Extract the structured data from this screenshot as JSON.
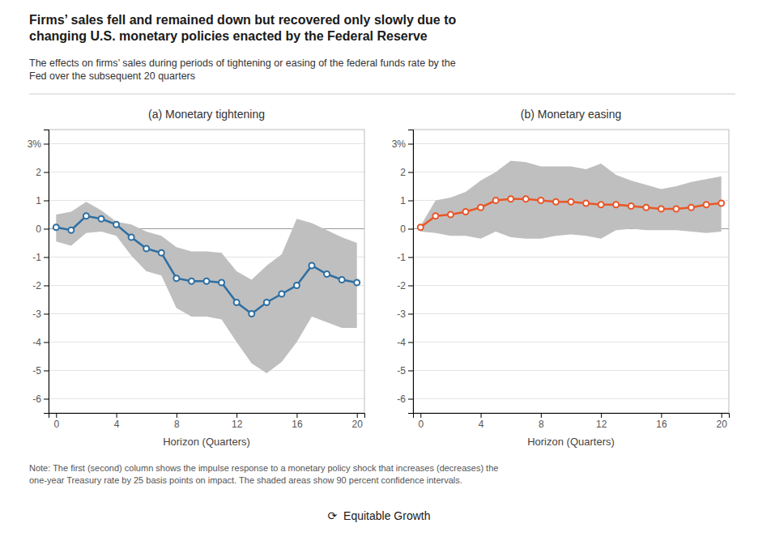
{
  "title": "Firms’ sales fell and remained down but recovered only slowly due to\nchanging U.S. monetary policies enacted by the Federal Reserve",
  "subtitle": "The effects on firms’ sales during periods of tightening or easing of the federal funds rate by the\nFed over the subsequent 20 quarters",
  "note": "Note: The first (second) column shows the impulse response to a monetary policy shock that increases (decreases) the\none-year Treasury rate by 25 basis points on impact. The shaded areas show 90 percent confidence intervals.",
  "annotations": [
    "⟳  Equitable Growth"
  ],
  "chart_data": [
    {
      "type": "line",
      "title": "(a) Monetary tightening",
      "x_label": "Horizon (Quarters)",
      "x": [
        0,
        1,
        2,
        3,
        4,
        5,
        6,
        7,
        8,
        9,
        10,
        11,
        12,
        13,
        14,
        15,
        16,
        17,
        18,
        19,
        20
      ],
      "series": [
        {
          "type": "area",
          "color": "#c0bfbf",
          "upper": [
            0.5,
            0.6,
            0.95,
            0.65,
            0.25,
            0.15,
            -0.1,
            -0.25,
            -0.65,
            -0.8,
            -0.8,
            -0.85,
            -1.5,
            -1.8,
            -1.3,
            -0.9,
            0.35,
            0.2,
            -0.05,
            -0.3,
            -0.5
          ],
          "lower": [
            -0.45,
            -0.6,
            -0.15,
            -0.1,
            -0.25,
            -0.95,
            -1.5,
            -1.65,
            -2.8,
            -3.1,
            -3.1,
            -3.2,
            -4.0,
            -4.75,
            -5.1,
            -4.7,
            -4.0,
            -3.1,
            -3.3,
            -3.5,
            -3.5
          ]
        },
        {
          "type": "line",
          "color": "#2e6fa3",
          "marker": "circle",
          "values": [
            0.05,
            -0.05,
            0.45,
            0.35,
            0.15,
            -0.3,
            -0.7,
            -0.85,
            -1.75,
            -1.85,
            -1.85,
            -1.9,
            -2.6,
            -3.0,
            -2.6,
            -2.3,
            -2.0,
            -1.3,
            -1.6,
            -1.8,
            -1.9
          ]
        }
      ],
      "xlim": [
        -0.5,
        20.5
      ],
      "xticks": [
        0,
        4,
        8,
        12,
        16,
        20
      ],
      "ylim": [
        -6.5,
        3.5
      ],
      "yticks": [
        -6,
        -5,
        -4,
        -3,
        -2,
        -1,
        0,
        1,
        2,
        {
          "value": 3,
          "label": "3%"
        }
      ],
      "grid": true
    },
    {
      "type": "line",
      "title": "(b) Monetary easing",
      "x_label": "Horizon (Quarters)",
      "x": [
        0,
        1,
        2,
        3,
        4,
        5,
        6,
        7,
        8,
        9,
        10,
        11,
        12,
        13,
        14,
        15,
        16,
        17,
        18,
        19,
        20
      ],
      "series": [
        {
          "type": "area",
          "color": "#c0bfbf",
          "upper": [
            0.1,
            1.0,
            1.1,
            1.3,
            1.7,
            2.0,
            2.4,
            2.35,
            2.2,
            2.2,
            2.2,
            2.1,
            2.3,
            1.9,
            1.7,
            1.55,
            1.4,
            1.5,
            1.65,
            1.75,
            1.85
          ],
          "lower": [
            -0.1,
            -0.15,
            -0.25,
            -0.25,
            -0.35,
            -0.1,
            -0.3,
            -0.35,
            -0.35,
            -0.25,
            -0.2,
            -0.25,
            -0.35,
            -0.05,
            0.0,
            -0.05,
            -0.05,
            -0.05,
            -0.1,
            -0.15,
            -0.1
          ]
        },
        {
          "type": "line",
          "color": "#e8572a",
          "marker": "circle",
          "values": [
            0.05,
            0.45,
            0.5,
            0.6,
            0.75,
            1.0,
            1.05,
            1.05,
            1.0,
            0.95,
            0.95,
            0.9,
            0.85,
            0.85,
            0.8,
            0.75,
            0.7,
            0.7,
            0.75,
            0.85,
            0.9
          ]
        }
      ],
      "xlim": [
        -0.5,
        20.5
      ],
      "xticks": [
        0,
        4,
        8,
        12,
        16,
        20
      ],
      "ylim": [
        -6.5,
        3.5
      ],
      "yticks": [
        -6,
        -5,
        -4,
        -3,
        -2,
        -1,
        0,
        1,
        2,
        {
          "value": 3,
          "label": "3%"
        }
      ],
      "grid": true
    }
  ]
}
